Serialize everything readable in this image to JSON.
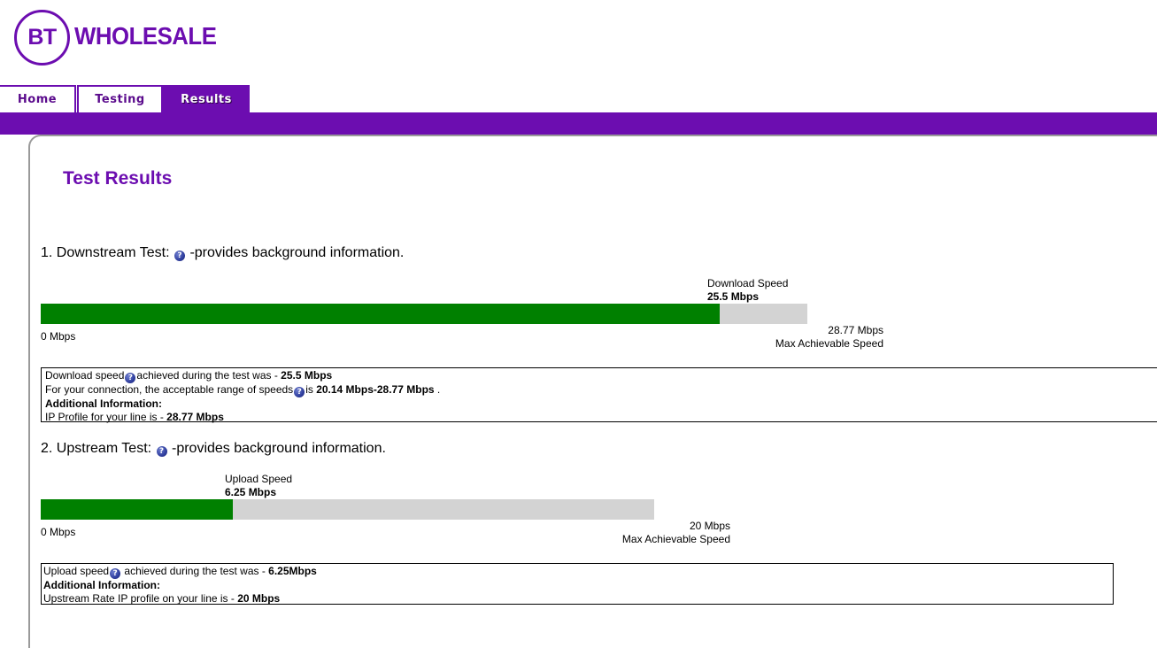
{
  "brand": {
    "logo_mark": "BT",
    "logo_word": "WHOLESALE"
  },
  "tabs": [
    {
      "label": "Home",
      "active": false
    },
    {
      "label": "Testing",
      "active": false
    },
    {
      "label": "Results",
      "active": true
    }
  ],
  "colors": {
    "brand_purple": "#6c0db0",
    "bar_green": "#008000",
    "bar_track": "#d3d3d3"
  },
  "page_title": "Test Results",
  "downstream": {
    "heading_prefix": "1. Downstream Test:",
    "heading_suffix": "-provides background information.",
    "speed_label": "Download Speed",
    "speed_value": "25.5 Mbps",
    "fill_fraction": 0.886,
    "min_label": "0 Mbps",
    "max_value": "28.77 Mbps",
    "max_label": "Max Achievable Speed",
    "info": {
      "line1_a": "Download speed",
      "line1_b": "achieved during the test was - ",
      "line1_value": "25.5 Mbps",
      "line2_a": "For your connection, the acceptable range of speeds",
      "line2_b": "is ",
      "line2_value": "20.14 Mbps-28.77 Mbps",
      "line2_end": " .",
      "additional_heading": "Additional Information:",
      "line3_a": "IP Profile for your line is - ",
      "line3_value": "28.77 Mbps"
    }
  },
  "upstream": {
    "heading_prefix": "2. Upstream Test:",
    "heading_suffix": "-provides background information.",
    "speed_label": "Upload Speed",
    "speed_value": "6.25 Mbps",
    "fill_fraction": 0.3125,
    "min_label": "0 Mbps",
    "max_value": "20 Mbps",
    "max_label": "Max Achievable Speed",
    "info": {
      "line1_a": "Upload speed",
      "line1_b": " achieved during the test was - ",
      "line1_value": "6.25Mbps",
      "additional_heading": "Additional Information:",
      "line2_a": "Upstream Rate IP profile on your line is - ",
      "line2_value": "20 Mbps"
    }
  }
}
